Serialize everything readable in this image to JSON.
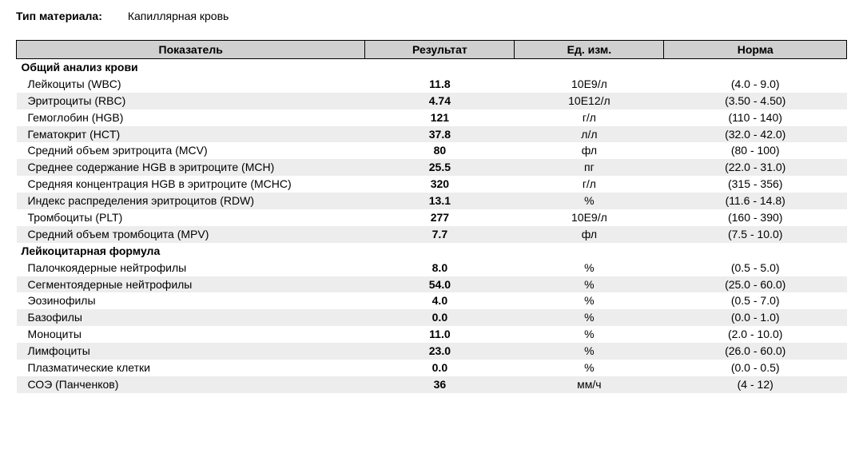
{
  "material": {
    "label": "Тип материала:",
    "value": "Капиллярная кровь"
  },
  "headers": {
    "indicator": "Показатель",
    "result": "Результат",
    "unit": "Ед. изм.",
    "norm": "Норма"
  },
  "sections": [
    {
      "title": "Общий анализ крови",
      "rows": [
        {
          "ind": "Лейкоциты (WBC)",
          "res": "11.8",
          "unit": "10Е9/л",
          "norm": "(4.0 - 9.0)",
          "stripe": false
        },
        {
          "ind": "Эритроциты (RBC)",
          "res": "4.74",
          "unit": "10Е12/л",
          "norm": "(3.50 - 4.50)",
          "stripe": true
        },
        {
          "ind": "Гемоглобин (HGB)",
          "res": "121",
          "unit": "г/л",
          "norm": "(110 - 140)",
          "stripe": false
        },
        {
          "ind": "Гематокрит (HCT)",
          "res": "37.8",
          "unit": "л/л",
          "norm": "(32.0 - 42.0)",
          "stripe": true
        },
        {
          "ind": "Средний объем эритроцита (MCV)",
          "res": "80",
          "unit": "фл",
          "norm": "(80 - 100)",
          "stripe": false
        },
        {
          "ind": "Среднее содержание HGB в эритроците (MCH)",
          "res": "25.5",
          "unit": "пг",
          "norm": "(22.0 - 31.0)",
          "stripe": true
        },
        {
          "ind": "Средняя концентрация HGB в эритроците (MCHC)",
          "res": "320",
          "unit": "г/л",
          "norm": "(315 - 356)",
          "stripe": false
        },
        {
          "ind": "Индекс распределения эритроцитов (RDW)",
          "res": "13.1",
          "unit": "%",
          "norm": "(11.6 - 14.8)",
          "stripe": true
        },
        {
          "ind": "Тромбоциты (PLT)",
          "res": "277",
          "unit": "10Е9/л",
          "norm": "(160 - 390)",
          "stripe": false
        },
        {
          "ind": "Средний объем тромбоцита (MPV)",
          "res": "7.7",
          "unit": "фл",
          "norm": "(7.5 - 10.0)",
          "stripe": true
        }
      ]
    },
    {
      "title": "Лейкоцитарная формула",
      "rows": [
        {
          "ind": "Палочкоядерные нейтрофилы",
          "res": "8.0",
          "unit": "%",
          "norm": "(0.5 - 5.0)",
          "stripe": false
        },
        {
          "ind": "Сегментоядерные нейтрофилы",
          "res": "54.0",
          "unit": "%",
          "norm": "(25.0 - 60.0)",
          "stripe": true
        },
        {
          "ind": "Эозинофилы",
          "res": "4.0",
          "unit": "%",
          "norm": "(0.5 - 7.0)",
          "stripe": false
        },
        {
          "ind": "Базофилы",
          "res": "0.0",
          "unit": "%",
          "norm": "(0.0 - 1.0)",
          "stripe": true
        },
        {
          "ind": "Моноциты",
          "res": "11.0",
          "unit": "%",
          "norm": "(2.0 - 10.0)",
          "stripe": false
        },
        {
          "ind": "Лимфоциты",
          "res": "23.0",
          "unit": "%",
          "norm": "(26.0 - 60.0)",
          "stripe": true
        },
        {
          "ind": "Плазматические клетки",
          "res": "0.0",
          "unit": "%",
          "norm": "(0.0 - 0.5)",
          "stripe": false
        },
        {
          "ind": "СОЭ (Панченков)",
          "res": "36",
          "unit": "мм/ч",
          "norm": "(4 - 12)",
          "stripe": true
        }
      ]
    }
  ]
}
